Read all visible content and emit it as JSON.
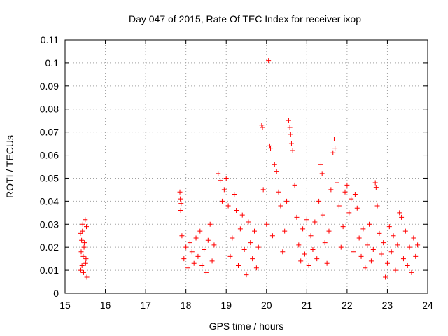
{
  "chart_data": {
    "type": "scatter",
    "title": "Day 047 of 2015, Rate Of TEC Index for receiver ixop",
    "xlabel": "GPS time / hours",
    "ylabel": "ROTI / TECUs",
    "xlim": [
      15,
      24
    ],
    "ylim": [
      0,
      0.11
    ],
    "x_ticks": [
      15,
      16,
      17,
      18,
      19,
      20,
      21,
      22,
      23,
      24
    ],
    "x_tick_labels": [
      "15",
      "16",
      "17",
      "18",
      "19",
      "20",
      "21",
      "22",
      "23",
      "24"
    ],
    "y_ticks": [
      0,
      0.01,
      0.02,
      0.03,
      0.04,
      0.05,
      0.06,
      0.07,
      0.08,
      0.09,
      0.1,
      0.11
    ],
    "y_tick_labels": [
      "0",
      "0.01",
      "0.02",
      "0.03",
      "0.04",
      "0.05",
      "0.06",
      "0.07",
      "0.08",
      "0.09",
      "0.1",
      "0.11"
    ],
    "grid": true,
    "marker": "+",
    "color": "#ff0000",
    "series": [
      {
        "name": "ROTI",
        "points": [
          [
            15.38,
            0.026
          ],
          [
            15.4,
            0.018
          ],
          [
            15.42,
            0.012
          ],
          [
            15.44,
            0.03
          ],
          [
            15.46,
            0.009
          ],
          [
            15.48,
            0.022
          ],
          [
            15.5,
            0.032
          ],
          [
            15.52,
            0.015
          ],
          [
            15.54,
            0.007
          ],
          [
            15.39,
            0.01
          ],
          [
            15.43,
            0.027
          ],
          [
            15.47,
            0.02
          ],
          [
            15.51,
            0.013
          ],
          [
            15.53,
            0.029
          ],
          [
            15.45,
            0.016
          ],
          [
            15.41,
            0.023
          ],
          [
            17.85,
            0.044
          ],
          [
            17.86,
            0.041
          ],
          [
            17.87,
            0.036
          ],
          [
            17.88,
            0.039
          ],
          [
            17.9,
            0.025
          ],
          [
            17.95,
            0.015
          ],
          [
            18.0,
            0.02
          ],
          [
            18.05,
            0.011
          ],
          [
            18.1,
            0.022
          ],
          [
            18.15,
            0.018
          ],
          [
            18.2,
            0.013
          ],
          [
            18.25,
            0.024
          ],
          [
            18.3,
            0.016
          ],
          [
            18.35,
            0.027
          ],
          [
            18.4,
            0.012
          ],
          [
            18.45,
            0.019
          ],
          [
            18.5,
            0.009
          ],
          [
            18.55,
            0.023
          ],
          [
            18.6,
            0.03
          ],
          [
            18.65,
            0.014
          ],
          [
            18.7,
            0.021
          ],
          [
            18.8,
            0.052
          ],
          [
            18.85,
            0.049
          ],
          [
            18.9,
            0.04
          ],
          [
            18.95,
            0.045
          ],
          [
            19.0,
            0.05
          ],
          [
            19.05,
            0.038
          ],
          [
            19.1,
            0.016
          ],
          [
            19.15,
            0.024
          ],
          [
            19.2,
            0.043
          ],
          [
            19.25,
            0.036
          ],
          [
            19.3,
            0.012
          ],
          [
            19.35,
            0.028
          ],
          [
            19.4,
            0.034
          ],
          [
            19.45,
            0.019
          ],
          [
            19.5,
            0.008
          ],
          [
            19.55,
            0.031
          ],
          [
            19.6,
            0.022
          ],
          [
            19.65,
            0.015
          ],
          [
            19.7,
            0.027
          ],
          [
            19.75,
            0.011
          ],
          [
            19.8,
            0.02
          ],
          [
            19.88,
            0.073
          ],
          [
            19.9,
            0.072
          ],
          [
            19.92,
            0.045
          ],
          [
            20.0,
            0.03
          ],
          [
            20.05,
            0.101
          ],
          [
            20.08,
            0.064
          ],
          [
            20.1,
            0.063
          ],
          [
            20.15,
            0.025
          ],
          [
            20.2,
            0.056
          ],
          [
            20.25,
            0.053
          ],
          [
            20.3,
            0.044
          ],
          [
            20.35,
            0.038
          ],
          [
            20.4,
            0.018
          ],
          [
            20.45,
            0.027
          ],
          [
            20.5,
            0.04
          ],
          [
            20.55,
            0.075
          ],
          [
            20.58,
            0.072
          ],
          [
            20.6,
            0.069
          ],
          [
            20.62,
            0.065
          ],
          [
            20.65,
            0.062
          ],
          [
            20.7,
            0.047
          ],
          [
            20.75,
            0.033
          ],
          [
            20.8,
            0.021
          ],
          [
            20.85,
            0.014
          ],
          [
            20.9,
            0.028
          ],
          [
            20.95,
            0.017
          ],
          [
            21.0,
            0.032
          ],
          [
            21.05,
            0.012
          ],
          [
            21.1,
            0.025
          ],
          [
            21.15,
            0.019
          ],
          [
            21.2,
            0.031
          ],
          [
            21.25,
            0.015
          ],
          [
            21.3,
            0.04
          ],
          [
            21.35,
            0.056
          ],
          [
            21.38,
            0.052
          ],
          [
            21.4,
            0.034
          ],
          [
            21.45,
            0.022
          ],
          [
            21.5,
            0.013
          ],
          [
            21.55,
            0.027
          ],
          [
            21.6,
            0.045
          ],
          [
            21.65,
            0.061
          ],
          [
            21.68,
            0.067
          ],
          [
            21.7,
            0.063
          ],
          [
            21.75,
            0.048
          ],
          [
            21.8,
            0.038
          ],
          [
            21.85,
            0.02
          ],
          [
            21.9,
            0.029
          ],
          [
            21.95,
            0.044
          ],
          [
            22.0,
            0.047
          ],
          [
            22.05,
            0.035
          ],
          [
            22.1,
            0.041
          ],
          [
            22.15,
            0.018
          ],
          [
            22.2,
            0.043
          ],
          [
            22.25,
            0.037
          ],
          [
            22.3,
            0.024
          ],
          [
            22.35,
            0.016
          ],
          [
            22.4,
            0.028
          ],
          [
            22.45,
            0.011
          ],
          [
            22.5,
            0.021
          ],
          [
            22.55,
            0.03
          ],
          [
            22.6,
            0.014
          ],
          [
            22.65,
            0.019
          ],
          [
            22.7,
            0.048
          ],
          [
            22.72,
            0.046
          ],
          [
            22.75,
            0.038
          ],
          [
            22.8,
            0.026
          ],
          [
            22.85,
            0.017
          ],
          [
            22.9,
            0.022
          ],
          [
            22.95,
            0.007
          ],
          [
            23.0,
            0.013
          ],
          [
            23.05,
            0.029
          ],
          [
            23.1,
            0.018
          ],
          [
            23.15,
            0.025
          ],
          [
            23.2,
            0.01
          ],
          [
            23.25,
            0.021
          ],
          [
            23.3,
            0.035
          ],
          [
            23.35,
            0.033
          ],
          [
            23.4,
            0.015
          ],
          [
            23.45,
            0.027
          ],
          [
            23.5,
            0.012
          ],
          [
            23.55,
            0.02
          ],
          [
            23.6,
            0.009
          ],
          [
            23.65,
            0.024
          ],
          [
            23.7,
            0.016
          ],
          [
            23.75,
            0.021
          ]
        ]
      }
    ]
  }
}
